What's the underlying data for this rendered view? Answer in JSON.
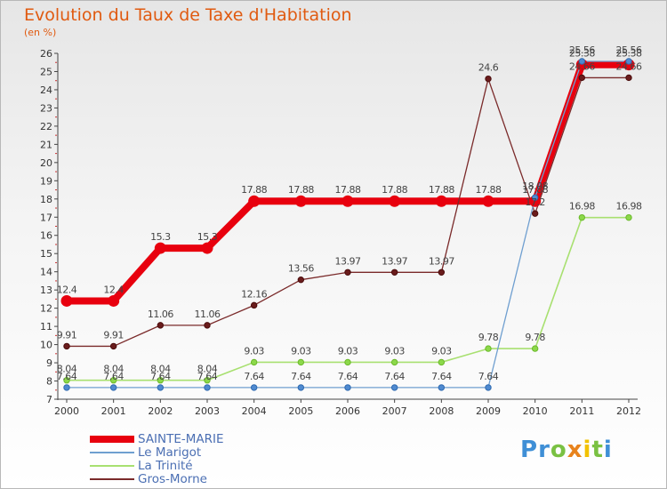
{
  "title": "Evolution du Taux de Taxe d'Habitation",
  "subtitle": "(en %)",
  "logo_letters": [
    {
      "ch": "P",
      "color": "#3f8fd6"
    },
    {
      "ch": "r",
      "color": "#3f8fd6"
    },
    {
      "ch": "o",
      "color": "#7ac143"
    },
    {
      "ch": "x",
      "color": "#e8831c"
    },
    {
      "ch": "i",
      "color": "#f2c200"
    },
    {
      "ch": "t",
      "color": "#7ac143"
    },
    {
      "ch": "i",
      "color": "#3f8fd6"
    }
  ],
  "chart_data": {
    "type": "line",
    "title": "Evolution du Taux de Taxe d'Habitation",
    "ylabel": "(en %)",
    "xlabel": "",
    "x": [
      "2000",
      "2001",
      "2002",
      "2003",
      "2004",
      "2005",
      "2006",
      "2007",
      "2008",
      "2009",
      "2010",
      "2011",
      "2012"
    ],
    "ylim": [
      7,
      26
    ],
    "yticks": [
      7,
      8,
      9,
      10,
      11,
      12,
      13,
      14,
      15,
      16,
      17,
      18,
      19,
      20,
      21,
      22,
      23,
      24,
      25,
      26
    ],
    "grid": false,
    "legend_position": "bottom-left",
    "series": [
      {
        "name": "SAINTE-MARIE",
        "color": "#e8000e",
        "values": [
          12.4,
          12.4,
          15.3,
          15.3,
          17.88,
          17.88,
          17.88,
          17.88,
          17.88,
          17.88,
          17.88,
          25.38,
          25.38
        ],
        "labels": [
          "12.4",
          "12.4",
          "15.3",
          "15.3",
          "17.88",
          "17.88",
          "17.88",
          "17.88",
          "17.88",
          "17.88",
          "17.88",
          "25.38",
          "25.38"
        ]
      },
      {
        "name": "Le Marigot",
        "color": "#6f9fd0",
        "values": [
          7.64,
          7.64,
          7.64,
          7.64,
          7.64,
          7.64,
          7.64,
          7.64,
          7.64,
          7.64,
          18.08,
          25.56,
          25.56
        ],
        "labels": [
          "7.64",
          "7.64",
          "7.64",
          "7.64",
          "7.64",
          "7.64",
          "7.64",
          "7.64",
          "7.64",
          "7.64",
          "18.08",
          "25.56",
          "25.56"
        ]
      },
      {
        "name": "La Trinité",
        "color": "#a8e070",
        "values": [
          8.04,
          8.04,
          8.04,
          8.04,
          9.03,
          9.03,
          9.03,
          9.03,
          9.03,
          9.78,
          9.78,
          16.98,
          16.98
        ],
        "labels": [
          "8.04",
          "8.04",
          "8.04",
          "8.04",
          "9.03",
          "9.03",
          "9.03",
          "9.03",
          "9.03",
          "9.78",
          "9.78",
          "16.98",
          "16.98"
        ]
      },
      {
        "name": "Gros-Morne",
        "color": "#7a2a2a",
        "values": [
          9.91,
          9.91,
          11.06,
          11.06,
          12.16,
          13.56,
          13.97,
          13.97,
          13.97,
          24.6,
          17.2,
          24.66,
          24.66
        ],
        "labels": [
          "9.91",
          "9.91",
          "11.06",
          "11.06",
          "12.16",
          "13.56",
          "13.97",
          "13.97",
          "13.97",
          "24.6",
          "17.2",
          "24.66",
          "24.66"
        ]
      }
    ]
  }
}
